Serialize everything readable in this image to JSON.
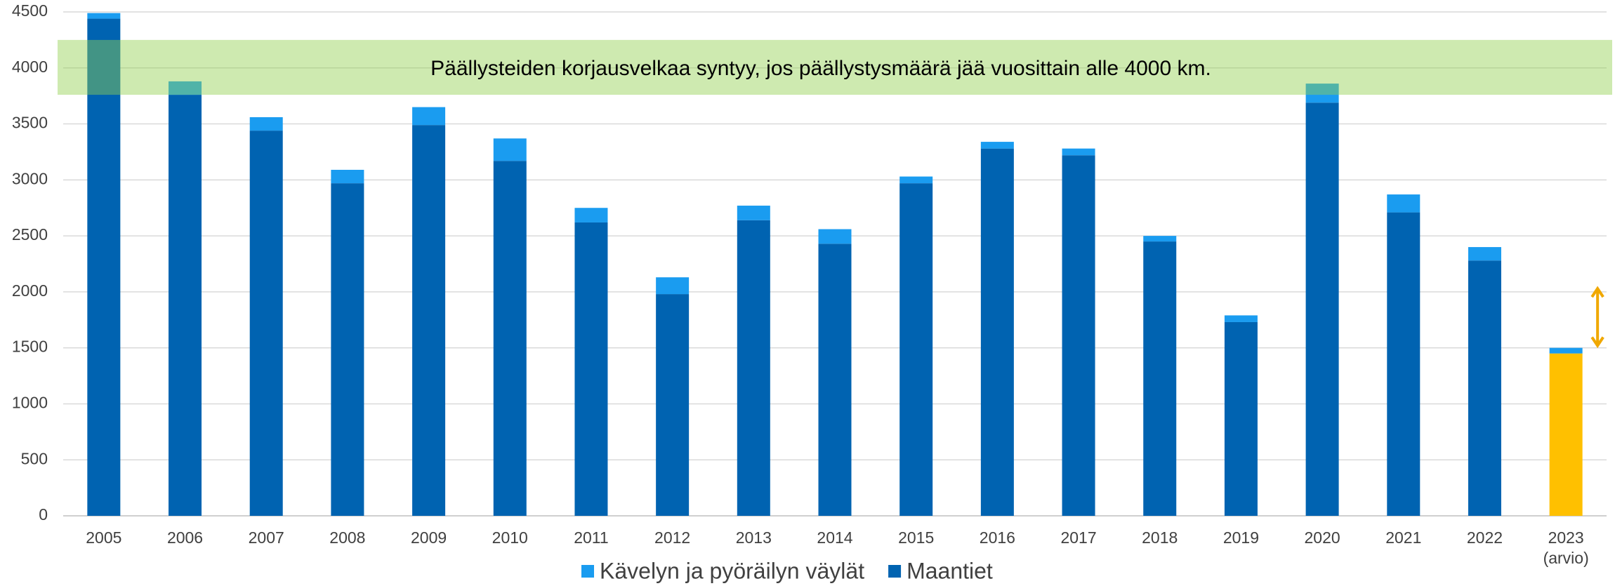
{
  "chart_data": {
    "type": "stacked_bar",
    "categories": [
      "2005",
      "2006",
      "2007",
      "2008",
      "2009",
      "2010",
      "2011",
      "2012",
      "2013",
      "2014",
      "2015",
      "2016",
      "2017",
      "2018",
      "2019",
      "2020",
      "2021",
      "2022",
      "2023"
    ],
    "category_notes": {
      "18": "(arvio)"
    },
    "series": [
      {
        "name": "Maantiet",
        "color": "#0063b1",
        "values": [
          4440,
          3760,
          3440,
          2970,
          3490,
          3170,
          2620,
          1980,
          2640,
          2430,
          2970,
          3280,
          3220,
          2450,
          1730,
          3690,
          2710,
          2280,
          1450
        ],
        "highlight": {
          "index": 18,
          "color": "#ffc000"
        }
      },
      {
        "name": "Kävelyn ja pyöräilyn väylät",
        "color": "#1a9cf0",
        "values": [
          50,
          120,
          120,
          120,
          160,
          200,
          130,
          150,
          130,
          130,
          60,
          60,
          60,
          50,
          60,
          170,
          160,
          120,
          50
        ]
      }
    ],
    "band": {
      "from": 3760,
      "to": 4250,
      "color": "#92d050",
      "label": "Päällysteiden korjausvelkaa syntyy, jos päällystysmäärä jää vuosittain alle 4000 km."
    },
    "arrow": {
      "index": 18,
      "from": 1520,
      "to": 2030,
      "color": "#f0a800"
    },
    "ylim": [
      0,
      4500
    ],
    "yticks": [
      0,
      500,
      1000,
      1500,
      2000,
      2500,
      3000,
      3500,
      4000,
      4500
    ],
    "grid": true,
    "legend": "bottom"
  }
}
